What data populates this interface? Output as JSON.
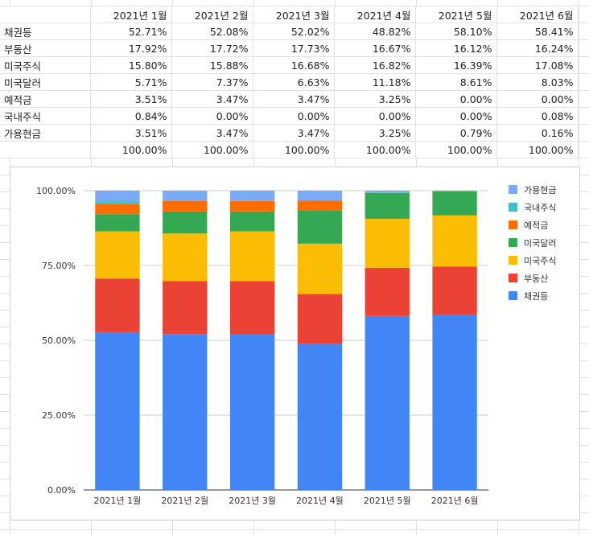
{
  "sheet": {
    "header": [
      "",
      "2021년 1월",
      "2021년 2월",
      "2021년 3월",
      "2021년 4월",
      "2021년 5월",
      "2021년 6월"
    ],
    "rows": [
      {
        "label": "채권등",
        "values": [
          "52.71%",
          "52.08%",
          "52.02%",
          "48.82%",
          "58.10%",
          "58.41%"
        ]
      },
      {
        "label": "부동산",
        "values": [
          "17.92%",
          "17.72%",
          "17.73%",
          "16.67%",
          "16.12%",
          "16.24%"
        ]
      },
      {
        "label": "미국주식",
        "values": [
          "15.80%",
          "15.88%",
          "16.68%",
          "16.82%",
          "16.39%",
          "17.08%"
        ]
      },
      {
        "label": "미국달러",
        "values": [
          "5.71%",
          "7.37%",
          "6.63%",
          "11.18%",
          "8.61%",
          "8.03%"
        ]
      },
      {
        "label": "예적금",
        "values": [
          "3.51%",
          "3.47%",
          "3.47%",
          "3.25%",
          "0.00%",
          "0.00%"
        ]
      },
      {
        "label": "국내주식",
        "values": [
          "0.84%",
          "0.00%",
          "0.00%",
          "0.00%",
          "0.00%",
          "0.08%"
        ]
      },
      {
        "label": "가용현금",
        "values": [
          "3.51%",
          "3.47%",
          "3.47%",
          "3.25%",
          "0.79%",
          "0.16%"
        ]
      },
      {
        "label": "",
        "values": [
          "100.00%",
          "100.00%",
          "100.00%",
          "100.00%",
          "100.00%",
          "100.00%"
        ]
      }
    ]
  },
  "chart_data": {
    "type": "bar",
    "stacked": true,
    "categories": [
      "2021년 1월",
      "2021년 2월",
      "2021년 3월",
      "2021년 4월",
      "2021년 5월",
      "2021년 6월"
    ],
    "series": [
      {
        "name": "채권등",
        "color": "#4285f4",
        "values": [
          52.71,
          52.08,
          52.02,
          48.82,
          58.1,
          58.41
        ]
      },
      {
        "name": "부동산",
        "color": "#ea4335",
        "values": [
          17.92,
          17.72,
          17.73,
          16.67,
          16.12,
          16.24
        ]
      },
      {
        "name": "미국주식",
        "color": "#fbbc04",
        "values": [
          15.8,
          15.88,
          16.68,
          16.82,
          16.39,
          17.08
        ]
      },
      {
        "name": "미국달러",
        "color": "#34a853",
        "values": [
          5.71,
          7.37,
          6.63,
          11.18,
          8.61,
          8.03
        ]
      },
      {
        "name": "예적금",
        "color": "#ff6d01",
        "values": [
          3.51,
          3.47,
          3.47,
          3.25,
          0.0,
          0.0
        ]
      },
      {
        "name": "국내주식",
        "color": "#46bdc6",
        "values": [
          0.84,
          0.0,
          0.0,
          0.0,
          0.0,
          0.08
        ]
      },
      {
        "name": "가용현금",
        "color": "#7baaf7",
        "values": [
          3.51,
          3.47,
          3.47,
          3.25,
          0.79,
          0.16
        ]
      }
    ],
    "y_ticks": [
      "0.00%",
      "25.00%",
      "50.00%",
      "75.00%",
      "100.00%"
    ],
    "ylim": [
      0,
      100
    ],
    "legend_position": "right",
    "grid": true
  }
}
